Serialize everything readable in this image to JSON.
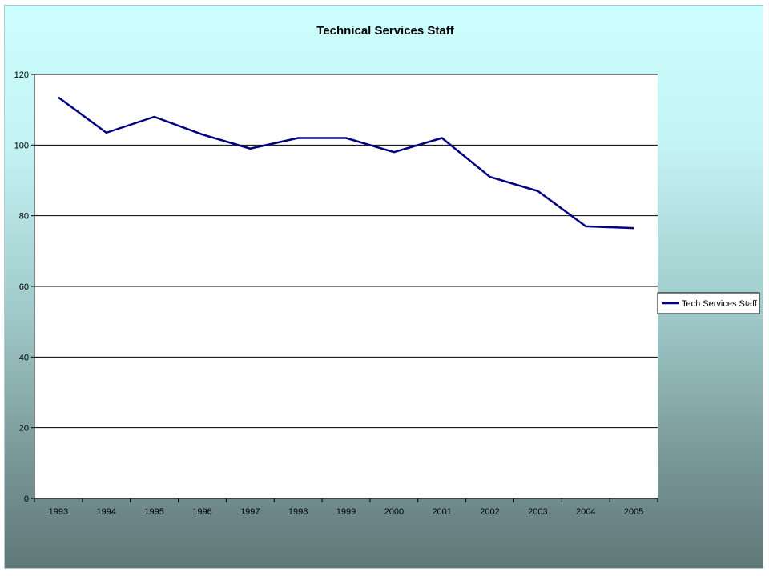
{
  "chart_data": {
    "type": "line",
    "title": "Technical Services Staff",
    "xlabel": "",
    "ylabel": "",
    "categories": [
      "1993",
      "1994",
      "1995",
      "1996",
      "1997",
      "1998",
      "1999",
      "2000",
      "2001",
      "2002",
      "2003",
      "2004",
      "2005"
    ],
    "series": [
      {
        "name": "Tech Services Staff",
        "values": [
          113.5,
          103.5,
          108,
          103,
          99,
          102,
          102,
          98,
          102,
          91,
          87,
          77,
          76.5
        ]
      }
    ],
    "ylim": [
      0,
      120
    ],
    "yticks": [
      0,
      20,
      40,
      60,
      80,
      100,
      120
    ],
    "grid": "horizontal",
    "legend": "right",
    "colors": {
      "series_line": "#000080",
      "plot_background": "#ffffff",
      "gridline": "#000000",
      "background_top": "#ccffff",
      "background_bottom": "#5f7777"
    }
  }
}
